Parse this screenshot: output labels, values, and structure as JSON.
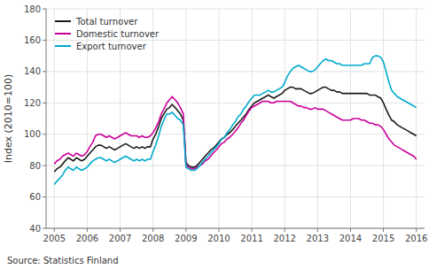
{
  "chart_data": {
    "type": "line",
    "y_label": "Index (2010=100)",
    "annotations": [
      "Source: Statistics Finland"
    ],
    "xlim": [
      2004.75,
      2016.25
    ],
    "xticks": [
      2005,
      2006,
      2007,
      2008,
      2009,
      2010,
      2011,
      2012,
      2013,
      2014,
      2015,
      2016
    ],
    "ylim": [
      40,
      180
    ],
    "yticks": [
      40,
      60,
      80,
      100,
      120,
      140,
      160,
      180
    ],
    "grid": true,
    "legend": "upper left",
    "x": [
      2005.0,
      2005.08,
      2005.17,
      2005.25,
      2005.33,
      2005.42,
      2005.5,
      2005.58,
      2005.67,
      2005.75,
      2005.83,
      2005.92,
      2006.0,
      2006.08,
      2006.17,
      2006.25,
      2006.33,
      2006.42,
      2006.5,
      2006.58,
      2006.67,
      2006.75,
      2006.83,
      2006.92,
      2007.0,
      2007.08,
      2007.17,
      2007.25,
      2007.33,
      2007.42,
      2007.5,
      2007.58,
      2007.67,
      2007.75,
      2007.83,
      2007.92,
      2008.0,
      2008.08,
      2008.17,
      2008.25,
      2008.33,
      2008.42,
      2008.5,
      2008.58,
      2008.67,
      2008.75,
      2008.83,
      2008.92,
      2009.0,
      2009.08,
      2009.17,
      2009.25,
      2009.33,
      2009.42,
      2009.5,
      2009.58,
      2009.67,
      2009.75,
      2009.83,
      2009.92,
      2010.0,
      2010.08,
      2010.17,
      2010.25,
      2010.33,
      2010.42,
      2010.5,
      2010.58,
      2010.67,
      2010.75,
      2010.83,
      2010.92,
      2011.0,
      2011.08,
      2011.17,
      2011.25,
      2011.33,
      2011.42,
      2011.5,
      2011.58,
      2011.67,
      2011.75,
      2011.83,
      2011.92,
      2012.0,
      2012.08,
      2012.17,
      2012.25,
      2012.33,
      2012.42,
      2012.5,
      2012.58,
      2012.67,
      2012.75,
      2012.83,
      2012.92,
      2013.0,
      2013.08,
      2013.17,
      2013.25,
      2013.33,
      2013.42,
      2013.5,
      2013.58,
      2013.67,
      2013.75,
      2013.83,
      2013.92,
      2014.0,
      2014.08,
      2014.17,
      2014.25,
      2014.33,
      2014.42,
      2014.5,
      2014.58,
      2014.67,
      2014.75,
      2014.83,
      2014.92,
      2015.0,
      2015.08,
      2015.17,
      2015.25,
      2015.33,
      2015.42,
      2015.5,
      2015.58,
      2015.67,
      2015.75,
      2015.83,
      2015.92,
      2016.0
    ],
    "series": [
      {
        "name": "Total turnover",
        "color": "#1a1a1a",
        "values": [
          76,
          78,
          79,
          81,
          83,
          85,
          84,
          83,
          85,
          84,
          83,
          84,
          86,
          88,
          90,
          92,
          93,
          93,
          92,
          91,
          92,
          91,
          90,
          91,
          92,
          93,
          94,
          93,
          92,
          91,
          92,
          91,
          92,
          91,
          92,
          92,
          97,
          100,
          105,
          110,
          113,
          116,
          117,
          119,
          117,
          115,
          113,
          109,
          82,
          80,
          79,
          79,
          80,
          82,
          84,
          86,
          88,
          90,
          91,
          93,
          95,
          97,
          98,
          100,
          101,
          103,
          105,
          107,
          109,
          111,
          113,
          116,
          118,
          120,
          121,
          122,
          123,
          124,
          125,
          124,
          123,
          124,
          125,
          126,
          128,
          129,
          130,
          130,
          129,
          129,
          129,
          128,
          127,
          126,
          126,
          127,
          128,
          129,
          130,
          130,
          129,
          128,
          128,
          127,
          127,
          126,
          126,
          126,
          126,
          126,
          126,
          126,
          126,
          126,
          126,
          125,
          125,
          125,
          124,
          123,
          120,
          116,
          112,
          109,
          108,
          106,
          105,
          104,
          103,
          102,
          101,
          100,
          99
        ]
      },
      {
        "name": "Domestic turnover",
        "color": "#cc0099",
        "values": [
          81,
          83,
          84,
          86,
          87,
          88,
          87,
          86,
          88,
          87,
          86,
          87,
          89,
          92,
          95,
          99,
          100,
          100,
          99,
          98,
          99,
          98,
          97,
          98,
          99,
          100,
          101,
          100,
          99,
          99,
          99,
          98,
          99,
          98,
          98,
          99,
          101,
          104,
          108,
          113,
          116,
          120,
          122,
          124,
          122,
          120,
          117,
          113,
          80,
          79,
          78,
          78,
          79,
          80,
          81,
          83,
          84,
          86,
          88,
          90,
          92,
          94,
          95,
          97,
          98,
          100,
          102,
          104,
          107,
          109,
          112,
          115,
          117,
          118,
          119,
          120,
          121,
          121,
          121,
          120,
          120,
          121,
          121,
          121,
          121,
          121,
          121,
          120,
          119,
          118,
          118,
          117,
          117,
          116,
          116,
          117,
          116,
          116,
          116,
          115,
          114,
          113,
          112,
          111,
          110,
          109,
          109,
          109,
          109,
          110,
          110,
          110,
          109,
          109,
          108,
          107,
          107,
          106,
          106,
          105,
          103,
          100,
          97,
          95,
          93,
          92,
          91,
          90,
          89,
          88,
          87,
          86,
          84
        ]
      },
      {
        "name": "Export turnover",
        "color": "#00aacc",
        "values": [
          68,
          70,
          72,
          74,
          77,
          79,
          78,
          77,
          79,
          78,
          77,
          78,
          79,
          81,
          83,
          84,
          85,
          85,
          84,
          83,
          84,
          83,
          82,
          83,
          84,
          85,
          86,
          85,
          84,
          83,
          84,
          83,
          84,
          83,
          84,
          84,
          89,
          93,
          99,
          105,
          109,
          113,
          113,
          114,
          112,
          110,
          109,
          106,
          79,
          78,
          77,
          77,
          78,
          80,
          82,
          84,
          86,
          88,
          90,
          92,
          94,
          97,
          98,
          101,
          103,
          106,
          108,
          111,
          113,
          116,
          118,
          121,
          123,
          125,
          125,
          125,
          126,
          127,
          128,
          127,
          127,
          128,
          129,
          130,
          133,
          137,
          140,
          142,
          143,
          144,
          143,
          142,
          141,
          140,
          140,
          141,
          143,
          145,
          147,
          148,
          147,
          147,
          146,
          145,
          145,
          144,
          144,
          144,
          144,
          144,
          144,
          144,
          144,
          145,
          145,
          145,
          149,
          150,
          150,
          149,
          146,
          140,
          133,
          128,
          126,
          124,
          123,
          122,
          121,
          120,
          119,
          118,
          117
        ]
      }
    ]
  }
}
